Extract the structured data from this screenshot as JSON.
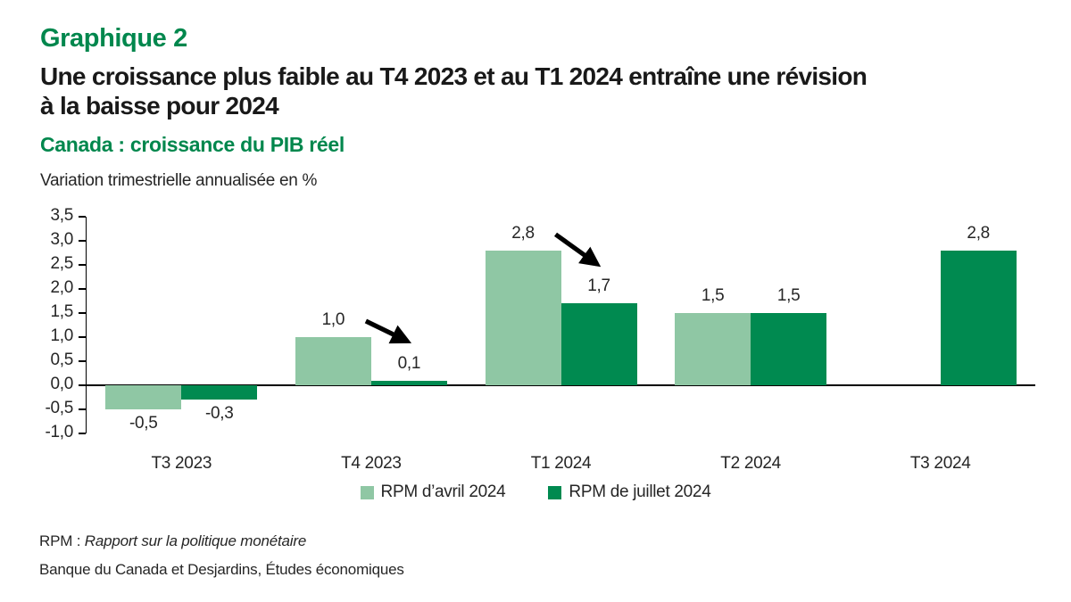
{
  "header": {
    "chart_number": "Graphique 2",
    "title_lines": [
      "Une croissance plus faible au T4 2023 et au T1 2024 entraîne une révision",
      "à la baisse pour 2024"
    ]
  },
  "colors": {
    "brand_green": "#00874D",
    "light_series": "#8FC7A4",
    "dark_series": "#008A50",
    "axis_black": "#000000",
    "text_dark": "#262626"
  },
  "chart_data": {
    "type": "bar",
    "title": "Canada : croissance du PIB réel",
    "ylabel": "Variation trimestrielle annualisée en %",
    "categories": [
      "T3 2023",
      "T4 2023",
      "T1 2024",
      "T2 2024",
      "T3 2024"
    ],
    "series": [
      {
        "name": "RPM d’avril 2024",
        "color": "#8FC7A4",
        "values": [
          -0.5,
          1.0,
          2.8,
          1.5,
          null
        ],
        "labels": [
          "-0,5",
          "1,0",
          "2,8",
          "1,5",
          null
        ]
      },
      {
        "name": "RPM de juillet 2024",
        "color": "#008A50",
        "values": [
          -0.3,
          0.1,
          1.7,
          1.5,
          2.8
        ],
        "labels": [
          "-0,3",
          "0,1",
          "1,7",
          "1,5",
          "2,8"
        ]
      }
    ],
    "ylim": [
      -1.0,
      3.5
    ],
    "ytick_step": 0.5,
    "yticks": [
      {
        "value": 3.5,
        "label": "3,5"
      },
      {
        "value": 3.0,
        "label": "3,0"
      },
      {
        "value": 2.5,
        "label": "2,5"
      },
      {
        "value": 2.0,
        "label": "2,0"
      },
      {
        "value": 1.5,
        "label": "1,5"
      },
      {
        "value": 1.0,
        "label": "1,0"
      },
      {
        "value": 0.5,
        "label": "0,5"
      },
      {
        "value": 0.0,
        "label": "0,0"
      },
      {
        "value": -0.5,
        "label": "-0,5"
      },
      {
        "value": -1.0,
        "label": "-1,0"
      }
    ],
    "grid": false,
    "legend_position": "bottom",
    "annotations": {
      "arrows": [
        {
          "category_index": 1
        },
        {
          "category_index": 2
        }
      ],
      "arrow_color": "#000000"
    }
  },
  "footer": {
    "abbrev_prefix": "RPM : ",
    "abbrev_italic": "Rapport sur la politique monétaire",
    "source": "Banque du Canada et Desjardins, Études économiques"
  }
}
